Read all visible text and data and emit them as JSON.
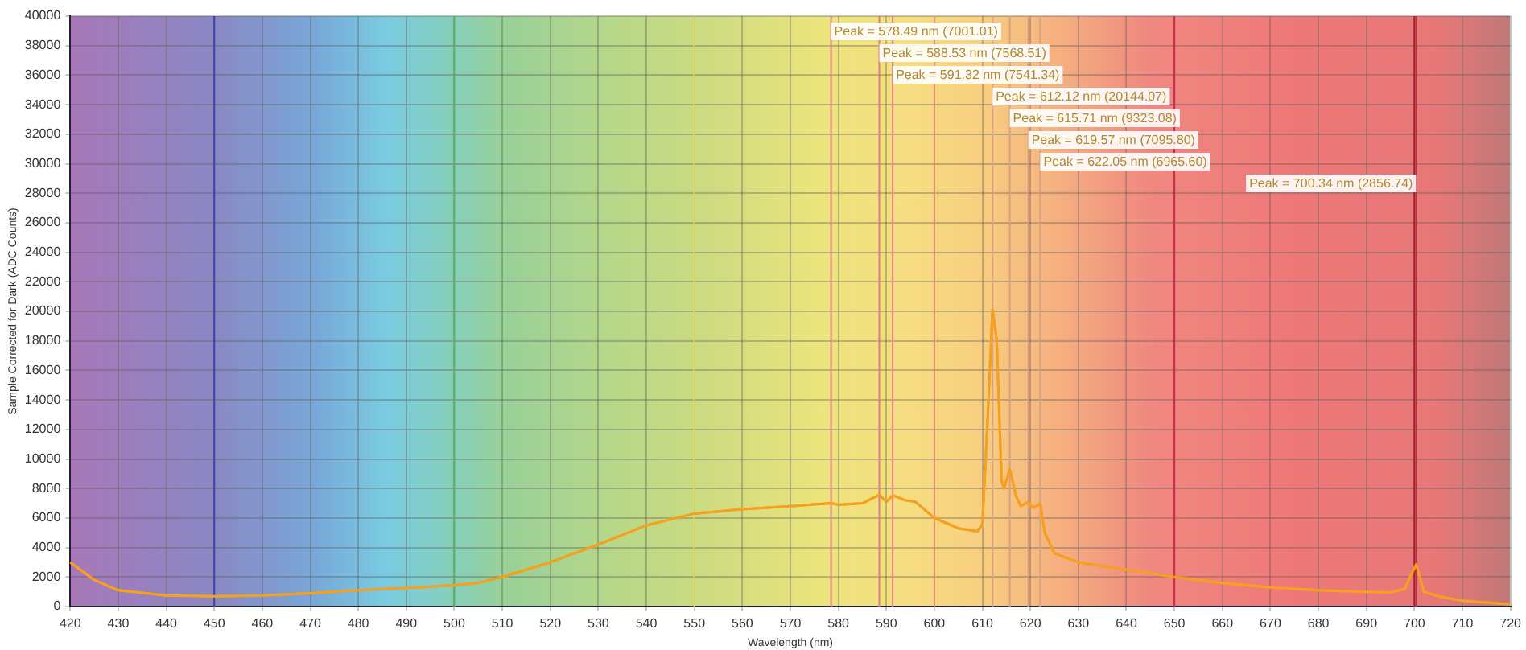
{
  "chart_data": {
    "type": "line",
    "xlabel": "Wavelength (nm)",
    "ylabel": "Sample Corrected for Dark (ADC Counts)",
    "xlim": [
      420,
      720
    ],
    "xticks": [
      420,
      430,
      440,
      450,
      460,
      470,
      480,
      490,
      500,
      510,
      520,
      530,
      540,
      550,
      560,
      570,
      580,
      590,
      600,
      610,
      620,
      630,
      640,
      650,
      660,
      670,
      680,
      690,
      700,
      710,
      720
    ],
    "ylim": [
      0,
      40000
    ],
    "yticks": [
      0,
      2000,
      4000,
      6000,
      8000,
      10000,
      12000,
      14000,
      16000,
      18000,
      20000,
      22000,
      24000,
      26000,
      28000,
      30000,
      32000,
      34000,
      36000,
      38000,
      40000
    ],
    "grid": true,
    "legend": false,
    "marker": "none",
    "line_style": "solid",
    "series": [
      {
        "color": "#f5a020",
        "x": [
          420,
          425,
          430,
          440,
          450,
          460,
          470,
          480,
          490,
          500,
          505,
          510,
          520,
          530,
          540,
          550,
          560,
          570,
          578.49,
          580,
          585,
          588.53,
          590,
          591.32,
          594,
          596,
          600,
          605,
          609,
          610,
          611,
          612.12,
          613,
          614,
          614.5,
          615.71,
          617,
          618,
          619.57,
          620.5,
          622.05,
          623,
          625,
          630,
          640,
          650,
          660,
          670,
          680,
          690,
          695,
          698,
          700.34,
          702,
          705,
          710,
          720
        ],
        "values": [
          3000,
          1800,
          1100,
          750,
          700,
          750,
          900,
          1100,
          1250,
          1450,
          1600,
          2000,
          3000,
          4200,
          5500,
          6300,
          6600,
          6800,
          7001,
          6900,
          7000,
          7568,
          7100,
          7541,
          7200,
          7100,
          6000,
          5300,
          5100,
          5600,
          12000,
          20144,
          18000,
          8500,
          8000,
          9323,
          7500,
          6800,
          7096,
          6700,
          6966,
          5000,
          3600,
          3000,
          2500,
          2000,
          1600,
          1300,
          1100,
          1000,
          950,
          1200,
          2857,
          1000,
          700,
          400,
          150
        ]
      }
    ],
    "ref_lines": [
      {
        "axis": "x",
        "value": 450,
        "color": "#3848a8"
      },
      {
        "axis": "x",
        "value": 500,
        "color": "#60b060"
      },
      {
        "axis": "x",
        "value": 550,
        "color": "#d8d860"
      },
      {
        "axis": "x",
        "value": 600,
        "color": "#e09070"
      },
      {
        "axis": "x",
        "value": 650,
        "color": "#d02848"
      },
      {
        "axis": "x",
        "value": 700,
        "color": "#a82030"
      },
      {
        "axis": "x",
        "value": 578.49,
        "label": "Peak = 578.49 nm (7001.01)",
        "color": "#d88080"
      },
      {
        "axis": "x",
        "value": 588.53,
        "label": "Peak = 588.53 nm (7568.51)",
        "color": "#d88080"
      },
      {
        "axis": "x",
        "value": 591.32,
        "label": "Peak = 591.32 nm (7541.34)",
        "color": "#d88080"
      },
      {
        "axis": "x",
        "value": 612.12,
        "label": "Peak = 612.12 nm (20144.07)",
        "color": "#d8a080"
      },
      {
        "axis": "x",
        "value": 615.71,
        "label": "Peak = 615.71 nm (9323.08)",
        "color": "#d8a080"
      },
      {
        "axis": "x",
        "value": 619.57,
        "label": "Peak = 619.57 nm (7095.80)",
        "color": "#d8a080"
      },
      {
        "axis": "x",
        "value": 622.05,
        "label": "Peak = 622.05 nm (6965.60)",
        "color": "#d8a080"
      },
      {
        "axis": "x",
        "value": 700.34,
        "label": "Peak = 700.34 nm (2856.74)",
        "color": "#c03040"
      }
    ]
  }
}
